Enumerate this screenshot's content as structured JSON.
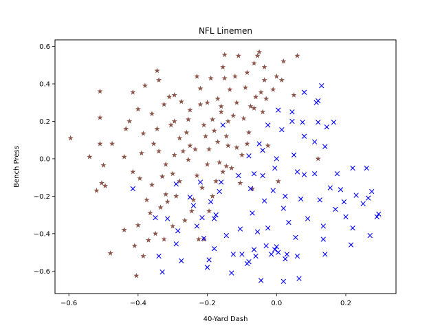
{
  "chart_data": {
    "type": "scatter",
    "title": "NFL Linemen",
    "xlabel": "40-Yard Dash",
    "ylabel": "Bench Press",
    "xlim": [
      -0.64,
      0.345
    ],
    "ylim": [
      -0.72,
      0.635
    ],
    "xticks": [
      -0.6,
      -0.4,
      -0.2,
      0.0,
      0.2
    ],
    "xtick_labels": [
      "−0.6",
      "−0.4",
      "−0.2",
      "0.0",
      "0.2"
    ],
    "yticks": [
      -0.6,
      -0.4,
      -0.2,
      0.0,
      0.2,
      0.4,
      0.6
    ],
    "ytick_labels": [
      "−0.6",
      "−0.4",
      "−0.2",
      "0.0",
      "0.2",
      "0.4",
      "0.6"
    ],
    "grid": false,
    "series": [
      {
        "marker": "star",
        "color": "#8c564b",
        "points": [
          [
            -0.595,
            0.11
          ],
          [
            -0.54,
            0.01
          ],
          [
            -0.52,
            -0.17
          ],
          [
            -0.51,
            0.36
          ],
          [
            -0.51,
            0.22
          ],
          [
            -0.51,
            0.08
          ],
          [
            -0.505,
            -0.13
          ],
          [
            -0.5,
            -0.035
          ],
          [
            -0.495,
            -0.145
          ],
          [
            -0.48,
            -0.505
          ],
          [
            -0.475,
            0.08
          ],
          [
            -0.44,
            -0.38
          ],
          [
            -0.44,
            0.01
          ],
          [
            -0.435,
            0.16
          ],
          [
            -0.425,
            0.2
          ],
          [
            -0.415,
            -0.07
          ],
          [
            -0.415,
            0.355
          ],
          [
            -0.41,
            -0.465
          ],
          [
            -0.405,
            -0.625
          ],
          [
            -0.4,
            -0.355
          ],
          [
            -0.4,
            0.265
          ],
          [
            -0.395,
            -0.105
          ],
          [
            -0.39,
            0.03
          ],
          [
            -0.385,
            -0.52
          ],
          [
            -0.385,
            0.135
          ],
          [
            -0.38,
            0.39
          ],
          [
            -0.375,
            -0.22
          ],
          [
            -0.37,
            -0.435
          ],
          [
            -0.365,
            -0.29
          ],
          [
            -0.36,
            0.24
          ],
          [
            -0.36,
            -0.14
          ],
          [
            -0.355,
            0.08
          ],
          [
            -0.35,
            -0.4
          ],
          [
            -0.345,
            0.47
          ],
          [
            -0.345,
            0.16
          ],
          [
            -0.34,
            0.42
          ],
          [
            -0.34,
            0.04
          ],
          [
            -0.335,
            -0.26
          ],
          [
            -0.33,
            -0.095
          ],
          [
            -0.325,
            0.29
          ],
          [
            -0.325,
            -0.43
          ],
          [
            -0.32,
            -0.03
          ],
          [
            -0.32,
            -0.19
          ],
          [
            -0.315,
            -0.23
          ],
          [
            -0.31,
            0.33
          ],
          [
            -0.305,
            0.18
          ],
          [
            -0.3,
            -0.08
          ],
          [
            -0.3,
            -0.36
          ],
          [
            -0.295,
            0.34
          ],
          [
            -0.295,
            0.02
          ],
          [
            -0.295,
            0.2
          ],
          [
            -0.29,
            -0.2
          ],
          [
            -0.28,
            -0.12
          ],
          [
            -0.28,
            0.11
          ],
          [
            -0.275,
            0.305
          ],
          [
            -0.27,
            0.04
          ],
          [
            -0.265,
            -0.33
          ],
          [
            -0.26,
            0.14
          ],
          [
            -0.255,
            0.21
          ],
          [
            -0.255,
            -0.005
          ],
          [
            -0.25,
            0.26
          ],
          [
            -0.25,
            0.07
          ],
          [
            -0.245,
            -0.28
          ],
          [
            -0.24,
            -0.22
          ],
          [
            -0.235,
            0.05
          ],
          [
            -0.23,
            -0.09
          ],
          [
            -0.23,
            0.44
          ],
          [
            -0.225,
            -0.43
          ],
          [
            -0.22,
            0.29
          ],
          [
            -0.22,
            0.375
          ],
          [
            -0.215,
            -0.155
          ],
          [
            -0.21,
            -0.43
          ],
          [
            -0.21,
            0.18
          ],
          [
            -0.205,
            0.12
          ],
          [
            -0.2,
            -0.03
          ],
          [
            -0.2,
            0.3
          ],
          [
            -0.195,
            -0.28
          ],
          [
            -0.195,
            0.05
          ],
          [
            -0.19,
            0.43
          ],
          [
            -0.185,
            0.21
          ],
          [
            -0.185,
            -0.2
          ],
          [
            -0.18,
            0.15
          ],
          [
            -0.175,
            -0.12
          ],
          [
            -0.17,
            0.32
          ],
          [
            -0.17,
            0.09
          ],
          [
            -0.165,
            -0.02
          ],
          [
            -0.16,
            0.28
          ],
          [
            -0.16,
            0.25
          ],
          [
            -0.155,
            0.49
          ],
          [
            -0.155,
            -0.07
          ],
          [
            -0.15,
            0.555
          ],
          [
            -0.15,
            0.43
          ],
          [
            -0.145,
            -0.04
          ],
          [
            -0.145,
            0.12
          ],
          [
            -0.14,
            0.07
          ],
          [
            -0.14,
            0.2
          ],
          [
            -0.135,
            0.37
          ],
          [
            -0.13,
            -0.05
          ],
          [
            -0.125,
            0.23
          ],
          [
            -0.12,
            0.44
          ],
          [
            -0.115,
            0.06
          ],
          [
            -0.115,
            0.3
          ],
          [
            -0.11,
            0.55
          ],
          [
            -0.105,
            -0.13
          ],
          [
            -0.1,
            0.02
          ],
          [
            -0.095,
            0.215
          ],
          [
            -0.09,
            0.38
          ],
          [
            -0.085,
            0.46
          ],
          [
            -0.085,
            0.08
          ],
          [
            -0.08,
            0.14
          ],
          [
            -0.075,
            0.28
          ],
          [
            -0.07,
            -0.16
          ],
          [
            -0.065,
            0.27
          ],
          [
            -0.065,
            0.51
          ],
          [
            -0.06,
            0.33
          ],
          [
            -0.055,
            0.55
          ],
          [
            -0.05,
            0.57
          ],
          [
            -0.045,
            0.355
          ],
          [
            -0.04,
            0.25
          ],
          [
            -0.035,
            0.49
          ],
          [
            -0.035,
            0.42
          ],
          [
            -0.03,
            0.32
          ],
          [
            -0.025,
            0.07
          ],
          [
            -0.01,
            0.37
          ],
          [
            0.0,
            0.44
          ],
          [
            0.005,
            -0.12
          ],
          [
            0.015,
            0.42
          ],
          [
            0.02,
            0.52
          ],
          [
            0.05,
            0.34
          ],
          [
            0.06,
            0.55
          ],
          [
            0.12,
            0.0
          ]
        ]
      },
      {
        "marker": "x",
        "color": "#0000ff",
        "points": [
          [
            -0.415,
            -0.16
          ],
          [
            -0.35,
            -0.315
          ],
          [
            -0.34,
            -0.52
          ],
          [
            -0.33,
            -0.605
          ],
          [
            -0.315,
            -0.32
          ],
          [
            -0.29,
            -0.135
          ],
          [
            -0.29,
            -0.455
          ],
          [
            -0.285,
            -0.385
          ],
          [
            -0.275,
            -0.545
          ],
          [
            -0.25,
            -0.205
          ],
          [
            -0.24,
            -0.25
          ],
          [
            -0.23,
            -0.36
          ],
          [
            -0.22,
            -0.125
          ],
          [
            -0.215,
            -0.315
          ],
          [
            -0.21,
            -0.425
          ],
          [
            -0.2,
            -0.58
          ],
          [
            -0.195,
            -0.54
          ],
          [
            -0.19,
            -0.23
          ],
          [
            -0.18,
            -0.32
          ],
          [
            -0.18,
            -0.48
          ],
          [
            -0.175,
            -0.3
          ],
          [
            -0.165,
            -0.175
          ],
          [
            -0.16,
            -0.125
          ],
          [
            -0.155,
            0.18
          ],
          [
            -0.145,
            -0.41
          ],
          [
            -0.13,
            -0.61
          ],
          [
            -0.125,
            -0.51
          ],
          [
            -0.11,
            -0.09
          ],
          [
            -0.105,
            -0.375
          ],
          [
            -0.1,
            -0.51
          ],
          [
            -0.085,
            -0.56
          ],
          [
            -0.08,
            -0.55
          ],
          [
            -0.08,
            0.015
          ],
          [
            -0.075,
            -0.16
          ],
          [
            -0.07,
            -0.29
          ],
          [
            -0.065,
            -0.485
          ],
          [
            -0.065,
            -0.08
          ],
          [
            -0.06,
            -0.52
          ],
          [
            -0.055,
            -0.39
          ],
          [
            -0.05,
            0.08
          ],
          [
            -0.045,
            -0.65
          ],
          [
            -0.04,
            -0.09
          ],
          [
            -0.04,
            0.045
          ],
          [
            -0.035,
            -0.225
          ],
          [
            -0.03,
            -0.465
          ],
          [
            -0.025,
            -0.37
          ],
          [
            -0.025,
            0.18
          ],
          [
            -0.015,
            -0.51
          ],
          [
            -0.01,
            -0.17
          ],
          [
            -0.005,
            -0.05
          ],
          [
            -0.005,
            -0.485
          ],
          [
            0.0,
            -0.47
          ],
          [
            0.0,
            0.0
          ],
          [
            0.005,
            0.26
          ],
          [
            0.005,
            -0.5
          ],
          [
            0.015,
            0.155
          ],
          [
            0.02,
            -0.655
          ],
          [
            0.02,
            -0.265
          ],
          [
            0.025,
            -0.2
          ],
          [
            0.025,
            -0.535
          ],
          [
            0.03,
            -0.51
          ],
          [
            0.035,
            -0.34
          ],
          [
            0.045,
            0.2
          ],
          [
            0.045,
            0.25
          ],
          [
            0.05,
            0.02
          ],
          [
            0.055,
            -0.42
          ],
          [
            0.06,
            -0.07
          ],
          [
            0.06,
            -0.52
          ],
          [
            0.065,
            -0.64
          ],
          [
            0.07,
            -0.215
          ],
          [
            0.075,
            0.195
          ],
          [
            0.08,
            0.355
          ],
          [
            0.08,
            -0.085
          ],
          [
            0.08,
            0.12
          ],
          [
            0.09,
            -0.32
          ],
          [
            0.11,
            -0.08
          ],
          [
            0.11,
            0.09
          ],
          [
            0.115,
            0.3
          ],
          [
            0.12,
            0.31
          ],
          [
            0.12,
            0.195
          ],
          [
            0.125,
            -0.22
          ],
          [
            0.13,
            0.39
          ],
          [
            0.135,
            -0.36
          ],
          [
            0.135,
            -0.43
          ],
          [
            0.14,
            -0.51
          ],
          [
            0.14,
            0.065
          ],
          [
            0.145,
            0.17
          ],
          [
            0.155,
            -0.155
          ],
          [
            0.165,
            0.195
          ],
          [
            0.17,
            -0.27
          ],
          [
            0.175,
            -0.08
          ],
          [
            0.185,
            -0.165
          ],
          [
            0.195,
            -0.23
          ],
          [
            0.2,
            -0.31
          ],
          [
            0.215,
            -0.46
          ],
          [
            0.22,
            -0.37
          ],
          [
            0.22,
            -0.05
          ],
          [
            0.23,
            -0.195
          ],
          [
            0.25,
            -0.24
          ],
          [
            0.26,
            -0.05
          ],
          [
            0.265,
            -0.21
          ],
          [
            0.27,
            -0.41
          ],
          [
            0.275,
            -0.175
          ],
          [
            0.29,
            -0.31
          ],
          [
            0.295,
            -0.295
          ]
        ]
      }
    ]
  }
}
